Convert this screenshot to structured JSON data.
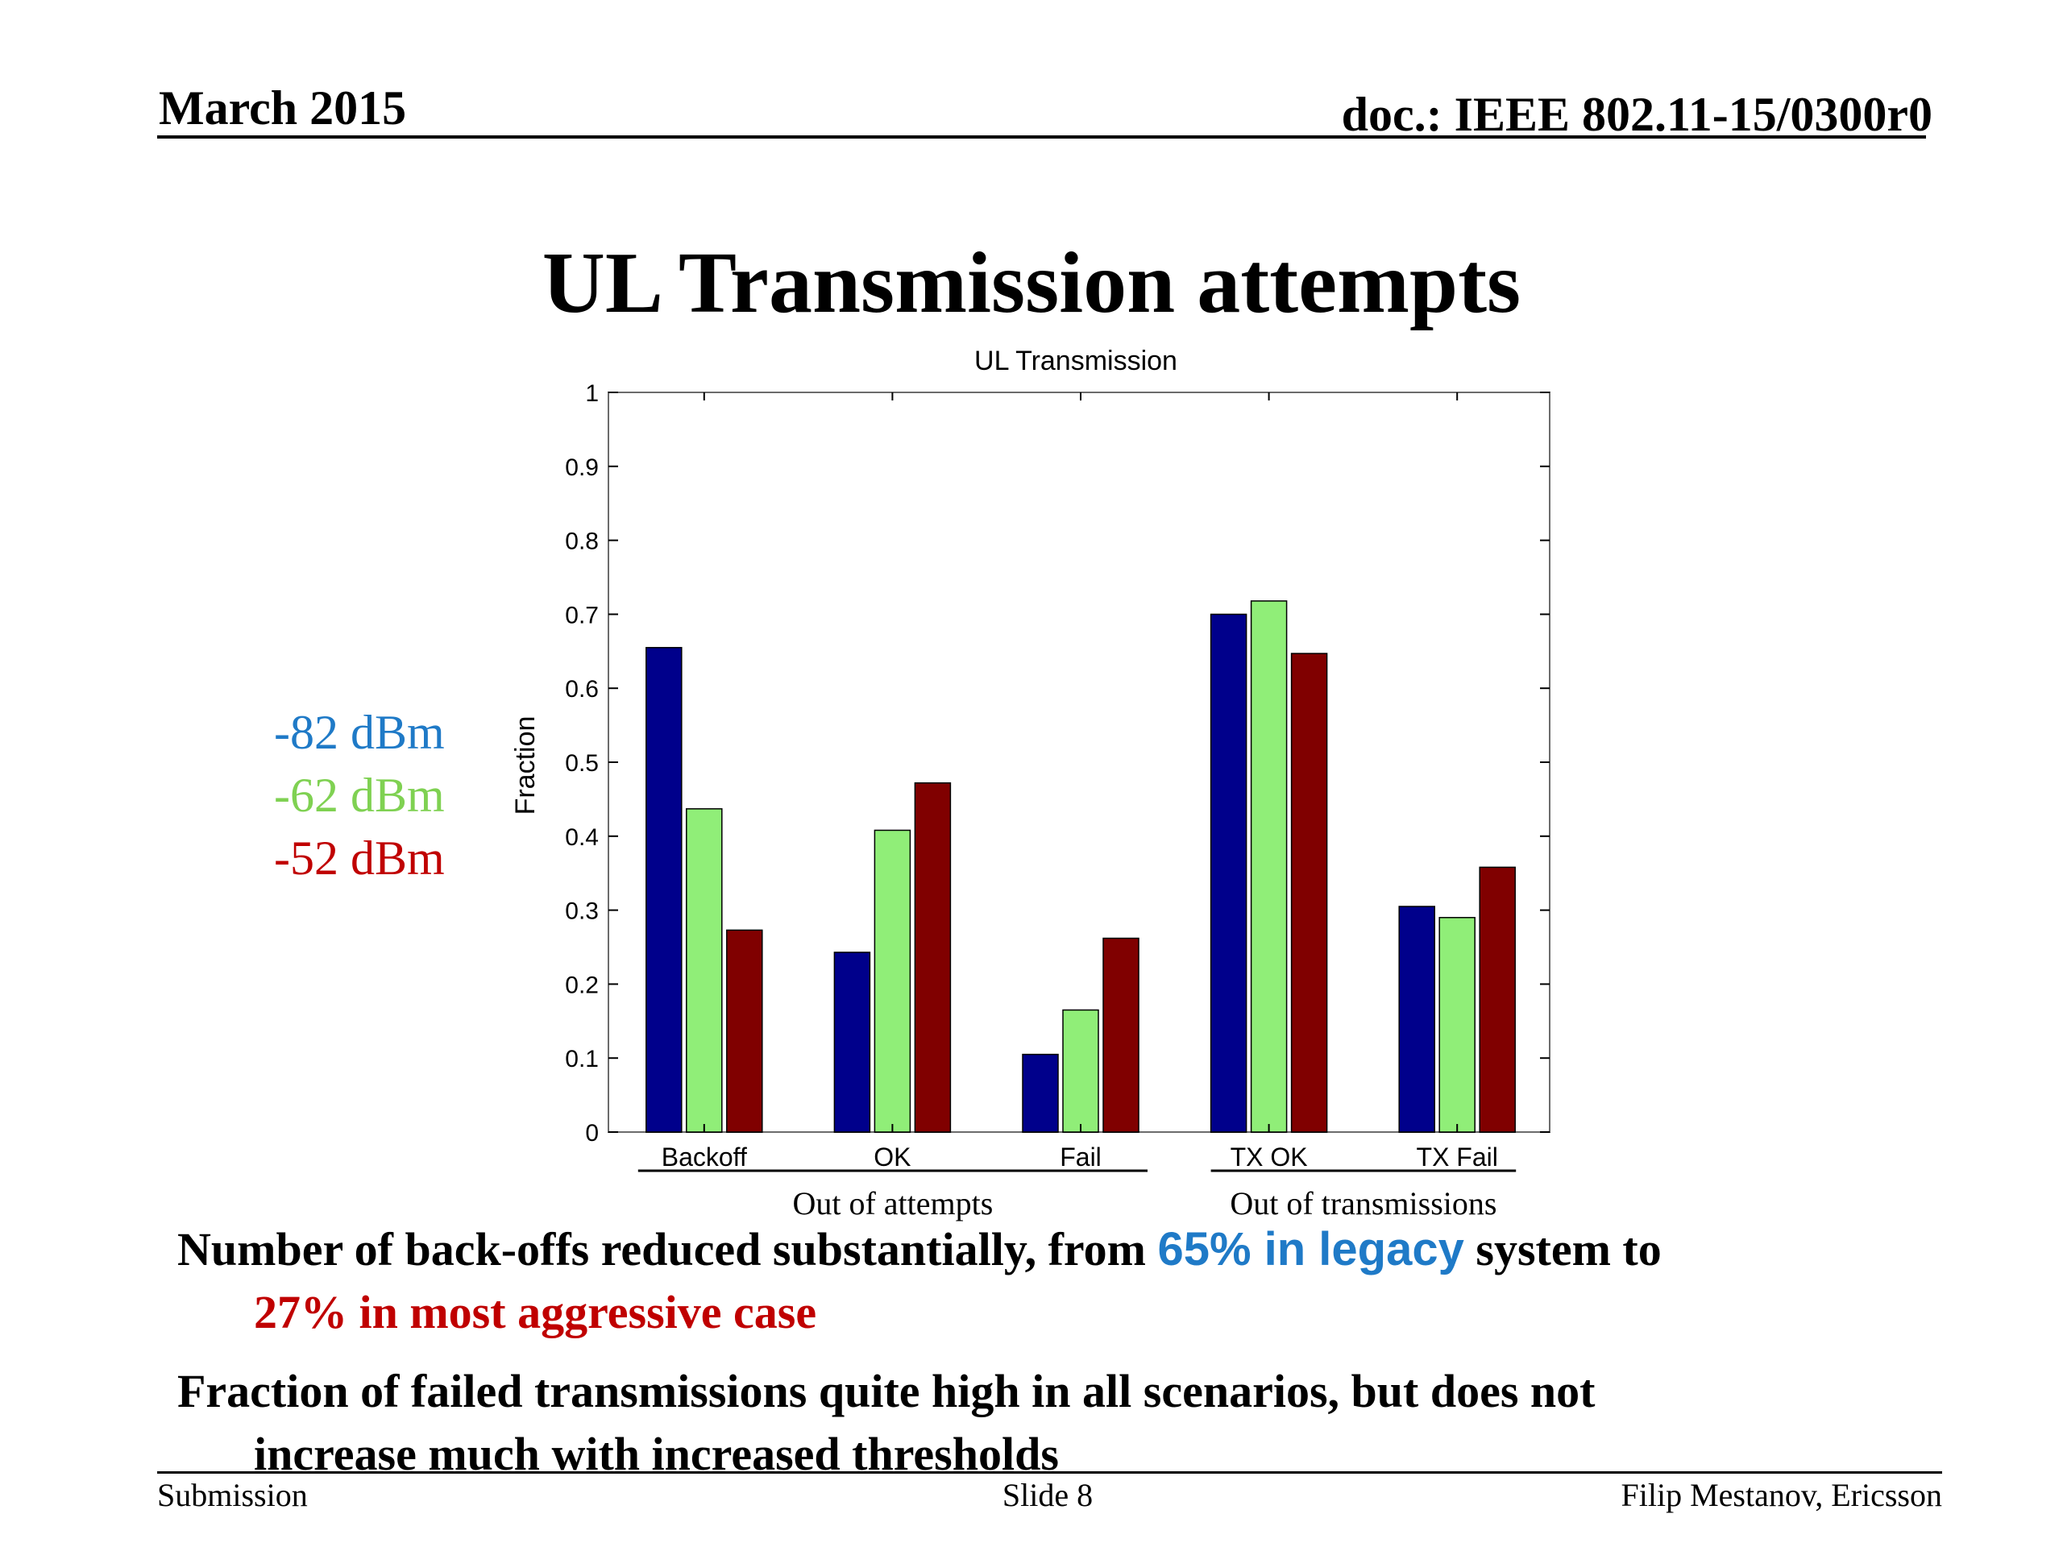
{
  "header": {
    "date": "March 2015",
    "doc": "doc.: IEEE 802.11-15/0300r0"
  },
  "slide_title": "UL Transmission attempts",
  "legend": [
    {
      "label": "-82 dBm",
      "color": "#1f7ac7"
    },
    {
      "label": "-62 dBm",
      "color": "#7fd152"
    },
    {
      "label": "-52 dBm",
      "color": "#c00000"
    }
  ],
  "chart_data": {
    "type": "bar",
    "title": "UL Transmission",
    "xlabel": "",
    "ylabel": "Fraction",
    "ylim": [
      0,
      1
    ],
    "yticks": [
      "0",
      "0.1",
      "0.2",
      "0.3",
      "0.4",
      "0.5",
      "0.6",
      "0.7",
      "0.8",
      "0.9",
      "1"
    ],
    "categories": [
      "Backoff",
      "OK",
      "Fail",
      "TX OK",
      "TX Fail"
    ],
    "series": [
      {
        "values": [
          0.655,
          0.243,
          0.105,
          0.7,
          0.305
        ],
        "color": "#00008b"
      },
      {
        "values": [
          0.437,
          0.408,
          0.165,
          0.718,
          0.29
        ],
        "color": "#90ee78"
      },
      {
        "values": [
          0.273,
          0.472,
          0.262,
          0.647,
          0.358
        ],
        "color": "#800000"
      }
    ],
    "group_labels": [
      "Out of attempts",
      "Out of transmissions"
    ],
    "grid": false
  },
  "bullets": {
    "b1_part1": "Number of back-offs reduced substantially, from ",
    "b1_highlight": "65% in legacy",
    "b1_part2": " system to",
    "b1_line2": "27% in most aggressive case",
    "b2_line1": "Fraction of failed transmissions quite high in all scenarios, but does not",
    "b2_line2": "increase much with increased thresholds"
  },
  "footer": {
    "left": "Submission",
    "center": "Slide 8",
    "right": "Filip Mestanov, Ericsson"
  }
}
